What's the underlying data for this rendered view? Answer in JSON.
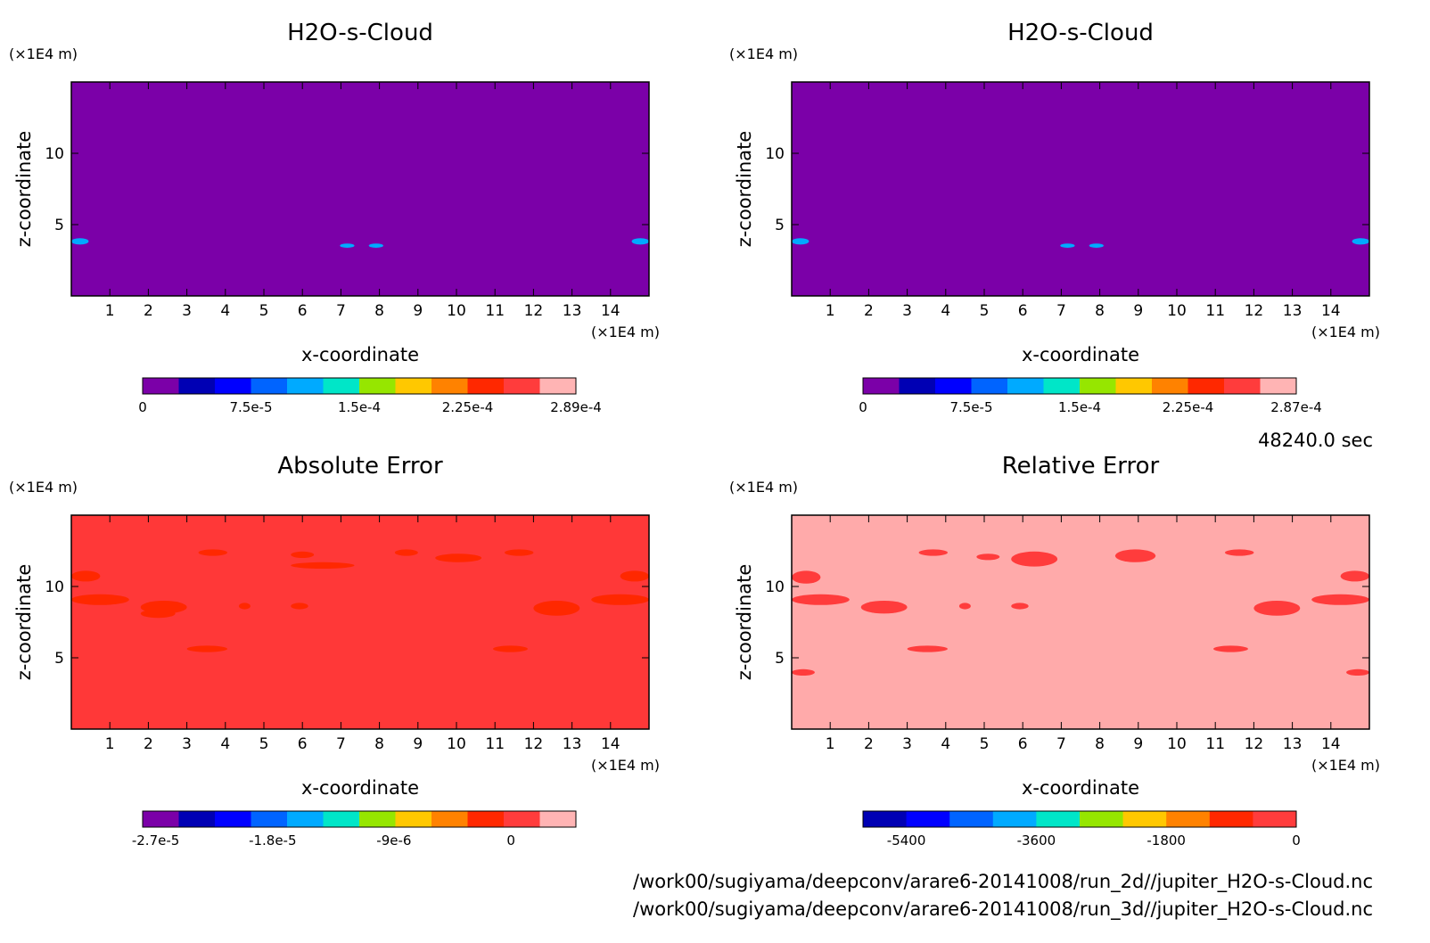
{
  "time_label": "48240.0 sec",
  "file_paths": [
    "/work00/sugiyama/deepconv/arare6-20141008/run_2d//jupiter_H2O-s-Cloud.nc",
    "/work00/sugiyama/deepconv/arare6-20141008/run_3d//jupiter_H2O-s-Cloud.nc"
  ],
  "chart_data": [
    {
      "type": "heatmap",
      "title": "H2O-s-Cloud",
      "xlabel": "x-coordinate",
      "ylabel": "z-coordinate",
      "x_unit": "(×1E4 m)",
      "y_unit": "(×1E4 m)",
      "xlim": [
        0,
        15
      ],
      "ylim": [
        0,
        15
      ],
      "x_ticks": [
        "1",
        "2",
        "3",
        "4",
        "5",
        "6",
        "7",
        "8",
        "9",
        "10",
        "11",
        "12",
        "13",
        "14"
      ],
      "y_ticks": [
        "5",
        "10"
      ],
      "background_level": 0,
      "colorbar": {
        "colors": [
          "#7b00a8",
          "#0000b4",
          "#0000ff",
          "#0064ff",
          "#00aaff",
          "#00e6c8",
          "#96e600",
          "#ffc800",
          "#ff8200",
          "#ff2800",
          "#ff3c3c",
          "#ffb4b4"
        ],
        "tick_labels": [
          "0",
          "7.5e-5",
          "1.5e-4",
          "2.25e-4",
          "2.89e-4"
        ]
      }
    },
    {
      "type": "heatmap",
      "title": "H2O-s-Cloud",
      "xlabel": "x-coordinate",
      "ylabel": "z-coordinate",
      "x_unit": "(×1E4 m)",
      "y_unit": "(×1E4 m)",
      "xlim": [
        0,
        15
      ],
      "ylim": [
        0,
        15
      ],
      "x_ticks": [
        "1",
        "2",
        "3",
        "4",
        "5",
        "6",
        "7",
        "8",
        "9",
        "10",
        "11",
        "12",
        "13",
        "14"
      ],
      "y_ticks": [
        "5",
        "10"
      ],
      "background_level": 0,
      "colorbar": {
        "colors": [
          "#7b00a8",
          "#0000b4",
          "#0000ff",
          "#0064ff",
          "#00aaff",
          "#00e6c8",
          "#96e600",
          "#ffc800",
          "#ff8200",
          "#ff2800",
          "#ff3c3c",
          "#ffb4b4"
        ],
        "tick_labels": [
          "0",
          "7.5e-5",
          "1.5e-4",
          "2.25e-4",
          "2.87e-4"
        ]
      }
    },
    {
      "type": "heatmap",
      "title": "Absolute Error",
      "xlabel": "x-coordinate",
      "ylabel": "z-coordinate",
      "x_unit": "(×1E4 m)",
      "y_unit": "(×1E4 m)",
      "xlim": [
        0,
        15
      ],
      "ylim": [
        0,
        15
      ],
      "x_ticks": [
        "1",
        "2",
        "3",
        "4",
        "5",
        "6",
        "7",
        "8",
        "9",
        "10",
        "11",
        "12",
        "13",
        "14"
      ],
      "y_ticks": [
        "5",
        "10"
      ],
      "background_level": 0,
      "colorbar": {
        "colors": [
          "#7b00a8",
          "#0000b4",
          "#0000ff",
          "#0064ff",
          "#00aaff",
          "#00e6c8",
          "#96e600",
          "#ffc800",
          "#ff8200",
          "#ff2800",
          "#ff3c3c",
          "#ffb4b4"
        ],
        "tick_labels": [
          "-2.7e-5",
          "-1.8e-5",
          "-9e-6",
          "0"
        ]
      }
    },
    {
      "type": "heatmap",
      "title": "Relative Error",
      "xlabel": "x-coordinate",
      "ylabel": "z-coordinate",
      "x_unit": "(×1E4 m)",
      "y_unit": "(×1E4 m)",
      "xlim": [
        0,
        15
      ],
      "ylim": [
        0,
        15
      ],
      "x_ticks": [
        "1",
        "2",
        "3",
        "4",
        "5",
        "6",
        "7",
        "8",
        "9",
        "10",
        "11",
        "12",
        "13",
        "14"
      ],
      "y_ticks": [
        "5",
        "10"
      ],
      "background_level": 0,
      "colorbar": {
        "colors": [
          "#0000b4",
          "#0000ff",
          "#0064ff",
          "#00aaff",
          "#00e6c8",
          "#96e600",
          "#ffc800",
          "#ff8200",
          "#ff2800",
          "#ff3c3c"
        ],
        "tick_labels": [
          "-5400",
          "-3600",
          "-1800",
          "0"
        ]
      }
    }
  ]
}
